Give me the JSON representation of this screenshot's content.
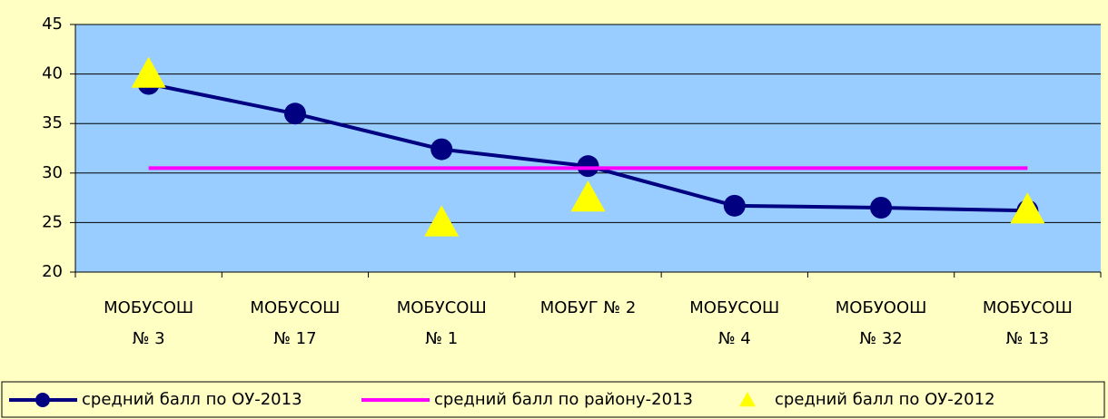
{
  "chart_data": {
    "type": "line",
    "categories": [
      [
        "МОБУСОШ",
        "№ 3"
      ],
      [
        "МОБУСОШ",
        "№ 17"
      ],
      [
        "МОБУСОШ",
        "№ 1"
      ],
      [
        "МОБУГ № 2"
      ],
      [
        "МОБУСОШ",
        "№ 4"
      ],
      [
        "МОБУООШ",
        "№ 32"
      ],
      [
        "МОБУСОШ",
        "№ 13"
      ]
    ],
    "series": [
      {
        "name": "средний балл по ОУ-2013",
        "color": "#000080",
        "marker": "circle",
        "values": [
          39,
          36,
          32.4,
          30.7,
          26.7,
          26.5,
          26.2
        ]
      },
      {
        "name": "средний балл по району-2013",
        "color": "#ff00ff",
        "marker": "none",
        "values": [
          30.5,
          30.5,
          30.5,
          30.5,
          30.5,
          30.5,
          30.5
        ]
      },
      {
        "name": "средний балл по ОУ-2012",
        "color": "#ffff00",
        "marker": "triangle",
        "line": false,
        "values": [
          40,
          null,
          25,
          27.5,
          null,
          null,
          26.3
        ]
      }
    ],
    "ylim": [
      20,
      45
    ],
    "yticks": [
      20,
      25,
      30,
      35,
      40,
      45
    ],
    "grid": true,
    "legend": "bottom"
  }
}
